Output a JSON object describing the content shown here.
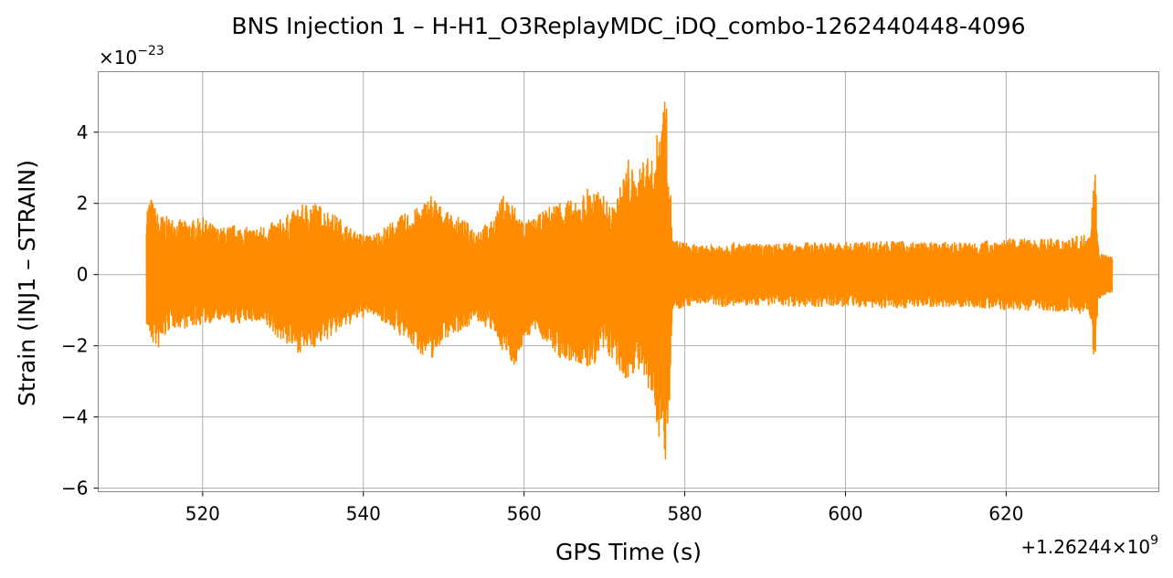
{
  "chart_data": {
    "type": "line",
    "title": "BNS Injection 1 – H-H1_O3ReplayMDC_iDQ_combo-1262440448-4096",
    "xlabel": "GPS Time (s)",
    "ylabel": "Strain (INJ1 – STRAIN)",
    "x_offset_label": "+1.26244×10",
    "x_offset_exponent": "9",
    "y_scale_label": "×10",
    "y_scale_exponent": "−23",
    "xlim": [
      507,
      639
    ],
    "ylim": [
      -6.1,
      5.7
    ],
    "x_ticks": [
      520,
      540,
      560,
      580,
      600,
      620
    ],
    "x_tick_labels": [
      "520",
      "540",
      "560",
      "580",
      "600",
      "620"
    ],
    "y_ticks": [
      -6,
      -4,
      -2,
      0,
      2,
      4
    ],
    "y_tick_labels": [
      "−6",
      "−4",
      "−2",
      "0",
      "2",
      "4"
    ],
    "grid": true,
    "series_color": "#ff8c00",
    "envelope": {
      "x": [
        513.0,
        513.5,
        514.5,
        516,
        518,
        520,
        522,
        524,
        526,
        528,
        530,
        532,
        533.5,
        535,
        537,
        539,
        541,
        543,
        545,
        547,
        548.5,
        550,
        552,
        554,
        556,
        557.5,
        559,
        560,
        561.5,
        563,
        565,
        566.5,
        568,
        570,
        571,
        572,
        573,
        574,
        575,
        576,
        577,
        577.6,
        578,
        578.5,
        580,
        582,
        585,
        590,
        595,
        600,
        605,
        610,
        615,
        620,
        625,
        628,
        629.5,
        630.5,
        631,
        631.5,
        632,
        633.2
      ],
      "upper": [
        1.9,
        2.2,
        1.7,
        1.6,
        1.5,
        1.6,
        1.3,
        1.4,
        1.3,
        1.4,
        1.6,
        1.9,
        2.1,
        1.9,
        1.6,
        1.2,
        1.1,
        1.4,
        1.7,
        1.9,
        2.3,
        1.8,
        1.6,
        1.3,
        1.5,
        2.3,
        1.9,
        1.5,
        1.6,
        1.9,
        2.2,
        2.0,
        2.5,
        2.2,
        1.9,
        2.5,
        3.3,
        2.6,
        3.5,
        3.2,
        4.6,
        5.2,
        3.6,
        1.0,
        0.9,
        0.8,
        0.9,
        0.85,
        0.9,
        0.9,
        0.95,
        0.9,
        0.9,
        1.0,
        1.0,
        1.05,
        1.1,
        1.3,
        3.4,
        0.7,
        0.6,
        0.5
      ],
      "lower": [
        -1.4,
        -1.9,
        -2.1,
        -1.5,
        -1.5,
        -1.4,
        -1.3,
        -1.4,
        -1.3,
        -1.5,
        -1.9,
        -2.2,
        -2.1,
        -1.9,
        -1.6,
        -1.3,
        -1.1,
        -1.4,
        -1.8,
        -2.2,
        -2.4,
        -1.8,
        -1.6,
        -1.3,
        -1.6,
        -2.2,
        -2.6,
        -1.8,
        -1.6,
        -2.0,
        -2.5,
        -2.5,
        -2.7,
        -2.2,
        -2.4,
        -2.9,
        -3.0,
        -2.6,
        -3.2,
        -3.6,
        -4.8,
        -5.5,
        -4.2,
        -1.0,
        -0.9,
        -0.8,
        -0.9,
        -0.85,
        -0.9,
        -0.9,
        -0.95,
        -0.9,
        -0.9,
        -1.0,
        -1.0,
        -1.05,
        -1.1,
        -1.3,
        -2.6,
        -0.7,
        -0.6,
        -0.5
      ]
    }
  }
}
